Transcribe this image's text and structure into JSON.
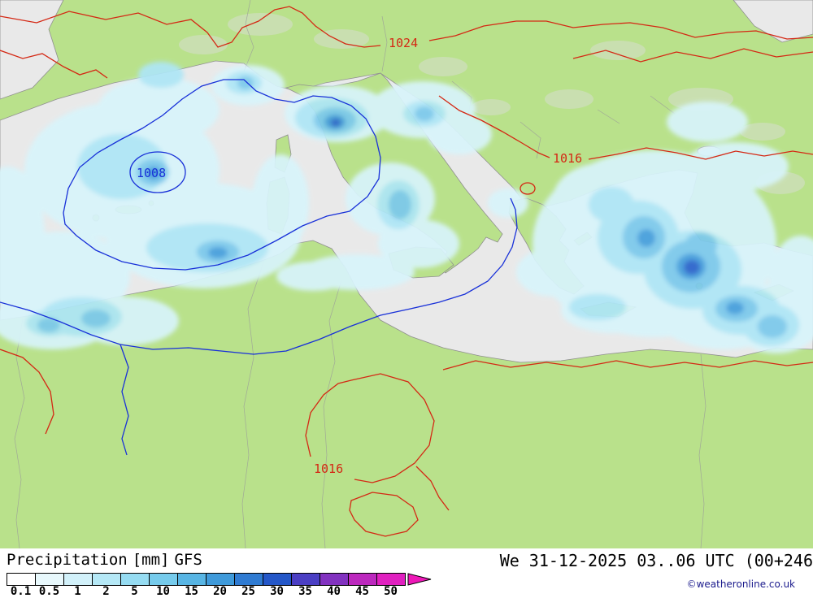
{
  "colors": {
    "land": "#b9e18b",
    "sea": "#e9e9e9",
    "coast": "#8f8f8f",
    "border": "#9a9a9a",
    "terrain": "#dedede",
    "precip0": "#d8f4fb",
    "precip1": "#aee6f6",
    "precip2": "#7cc9ec",
    "precip3": "#459fdd",
    "precip4": "#2a63cc",
    "isored": "#d42814",
    "isoblue": "#1830d8",
    "copyright": "#1a1a8c"
  },
  "map": {
    "isobar_labels": [
      {
        "text": "1024",
        "color": "red"
      },
      {
        "text": "1016",
        "color": "red"
      },
      {
        "text": "1008",
        "color": "blue"
      },
      {
        "text": "1016",
        "color": "red"
      }
    ]
  },
  "footer": {
    "title_param": "Precipitation",
    "title_unit": "[mm]",
    "title_model": "GFS",
    "datetime": "We 31-12-2025 03..06 UTC (00+246",
    "copyright": "©weatheronline.co.uk"
  },
  "legend": {
    "stops": [
      {
        "label": "0.1",
        "color": "#ffffff"
      },
      {
        "label": "0.5",
        "color": "#e8f8fc"
      },
      {
        "label": "1",
        "color": "#d2f1fa"
      },
      {
        "label": "2",
        "color": "#b5e8f6"
      },
      {
        "label": "5",
        "color": "#96dcf2"
      },
      {
        "label": "10",
        "color": "#76cbec"
      },
      {
        "label": "15",
        "color": "#58b5e4"
      },
      {
        "label": "20",
        "color": "#3f9ada"
      },
      {
        "label": "25",
        "color": "#2f7bd2"
      },
      {
        "label": "30",
        "color": "#2457c8"
      },
      {
        "label": "35",
        "color": "#4b3fc4"
      },
      {
        "label": "40",
        "color": "#8232c0"
      },
      {
        "label": "45",
        "color": "#bc28be"
      },
      {
        "label": "50",
        "color": "#e020c0"
      }
    ],
    "arrow_color": "#ee18b8"
  }
}
